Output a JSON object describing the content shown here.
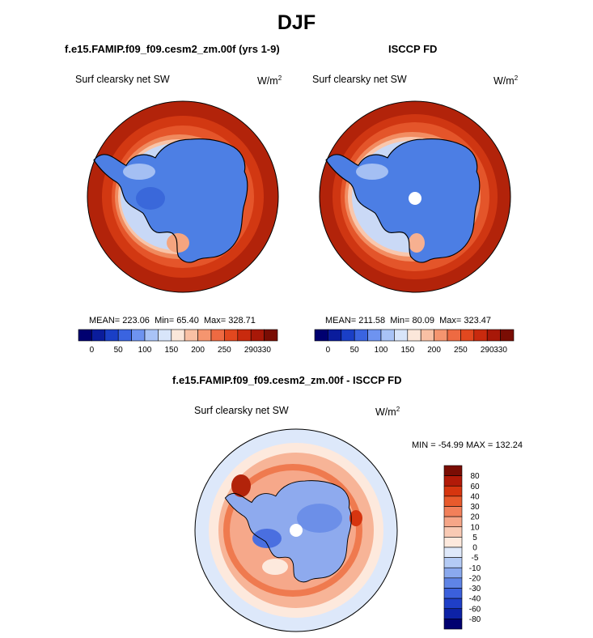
{
  "main_title": "DJF",
  "panels": {
    "model": {
      "title": "f.e15.FAMIP.f09_f09.cesm2_zm.00f (yrs 1-9)",
      "subtitle": "Surf clearsky net SW",
      "units": "W/m",
      "units_sup": "2",
      "mean_label": "MEAN=",
      "mean": "223.06",
      "min_label": "Min=",
      "min": "65.40",
      "max_label": "Max=",
      "max": "328.71"
    },
    "obs": {
      "title": "ISCCP FD",
      "subtitle": "Surf clearsky net SW",
      "units": "W/m",
      "units_sup": "2",
      "mean_label": "MEAN=",
      "mean": "211.58",
      "min_label": "Min=",
      "min": "80.09",
      "max_label": "Max=",
      "max": "323.47"
    },
    "diff": {
      "title": "f.e15.FAMIP.f09_f09.cesm2_zm.00f - ISCCP FD",
      "subtitle": "Surf clearsky net SW",
      "units": "W/m",
      "units_sup": "2",
      "minmax_text": "MIN = -54.99 MAX = 132.24"
    }
  },
  "chart_data": [
    {
      "type": "heatmap",
      "title": "f.e15.FAMIP.f09_f09.cesm2_zm.00f (yrs 1-9)",
      "variable": "Surf clearsky net SW",
      "projection": "south polar stereographic",
      "stats": {
        "mean": 223.06,
        "min": 65.4,
        "max": 328.71
      },
      "colorbar": {
        "orientation": "horizontal",
        "tick_labels": [
          "0",
          "50",
          "100",
          "150",
          "200",
          "250",
          "290",
          "330"
        ],
        "colors": [
          "#000070",
          "#0a1c9c",
          "#1a3fc6",
          "#3a64e0",
          "#6e93f0",
          "#a9c3f6",
          "#d8e5fa",
          "#fbe7da",
          "#f9c0a4",
          "#f5956f",
          "#ee6a42",
          "#e2481f",
          "#c92a0e",
          "#a81808",
          "#7a0d04"
        ]
      },
      "description_regions": [
        "Antarctic interior ~100-150",
        "Ocean ring ~300-330"
      ]
    },
    {
      "type": "heatmap",
      "title": "ISCCP FD",
      "variable": "Surf clearsky net SW",
      "projection": "south polar stereographic",
      "stats": {
        "mean": 211.58,
        "min": 80.09,
        "max": 323.47
      },
      "colorbar": {
        "orientation": "horizontal",
        "tick_labels": [
          "0",
          "50",
          "100",
          "150",
          "200",
          "250",
          "290",
          "330"
        ],
        "colors": [
          "#000070",
          "#0a1c9c",
          "#1a3fc6",
          "#3a64e0",
          "#6e93f0",
          "#a9c3f6",
          "#d8e5fa",
          "#fbe7da",
          "#f9c0a4",
          "#f5956f",
          "#ee6a42",
          "#e2481f",
          "#c92a0e",
          "#a81808",
          "#7a0d04"
        ]
      }
    },
    {
      "type": "heatmap",
      "title": "f.e15.FAMIP.f09_f09.cesm2_zm.00f - ISCCP FD",
      "variable": "Surf clearsky net SW",
      "projection": "south polar stereographic",
      "stats": {
        "min": -54.99,
        "max": 132.24
      },
      "colorbar": {
        "orientation": "vertical",
        "tick_labels": [
          "80",
          "60",
          "40",
          "30",
          "20",
          "10",
          "5",
          "0",
          "-5",
          "-10",
          "-20",
          "-30",
          "-40",
          "-60",
          "-80"
        ],
        "colors": [
          "#7a0d04",
          "#b21a08",
          "#d6350f",
          "#e85a2c",
          "#f2805a",
          "#f6a688",
          "#f9cab4",
          "#fde9dd",
          "#dfe9fa",
          "#b4cbf5",
          "#8aa9ee",
          "#5f84e6",
          "#3b60dc",
          "#1f3fc8",
          "#0d22a6",
          "#000070"
        ]
      }
    }
  ]
}
